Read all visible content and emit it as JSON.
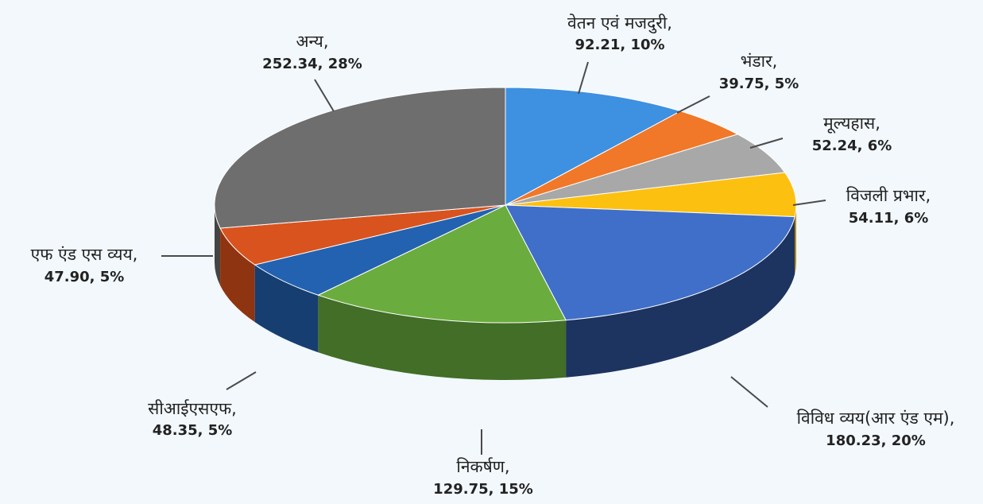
{
  "chart_data": {
    "type": "pie",
    "style": "3d",
    "slices": [
      {
        "label": "वेतन एवं मजदुरी,",
        "value": 92.21,
        "percent": "10%",
        "value_text": "92.21, 10%",
        "color": "#3e90e0",
        "side": "#2a6cb0"
      },
      {
        "label": "भंडार,",
        "value": 39.75,
        "percent": "5%",
        "value_text": "39.75, 5%",
        "color": "#f07828",
        "side": "#b85818"
      },
      {
        "label": "मूल्यहास,",
        "value": 52.24,
        "percent": "6%",
        "value_text": "52.24, 6%",
        "color": "#a8a8a8",
        "side": "#7a7a7a"
      },
      {
        "label": "विजली प्रभार,",
        "value": 54.11,
        "percent": "6%",
        "value_text": "54.11, 6%",
        "color": "#fcc010",
        "side": "#c49000"
      },
      {
        "label": "विविध व्यय(आर एंड एम),",
        "value": 180.23,
        "percent": "20%",
        "value_text": "180.23, 20%",
        "color": "#3f6fc8",
        "side": "#1d3360"
      },
      {
        "label": "निकर्षण,",
        "value": 129.75,
        "percent": "15%",
        "value_text": "129.75, 15%",
        "color": "#6bac3e",
        "side": "#426e27"
      },
      {
        "label": "सीआईएसएफ,",
        "value": 48.35,
        "percent": "5%",
        "value_text": "48.35, 5%",
        "color": "#2362b0",
        "side": "#163e70"
      },
      {
        "label": "एफ एंड एस व्यय,",
        "value": 47.9,
        "percent": "5%",
        "value_text": "47.90, 5%",
        "color": "#d9531e",
        "side": "#8f3410"
      },
      {
        "label": "अन्य,",
        "value": 252.34,
        "percent": "28%",
        "value_text": "252.34, 28%",
        "color": "#6e6e6e",
        "side": "#444444"
      }
    ]
  }
}
